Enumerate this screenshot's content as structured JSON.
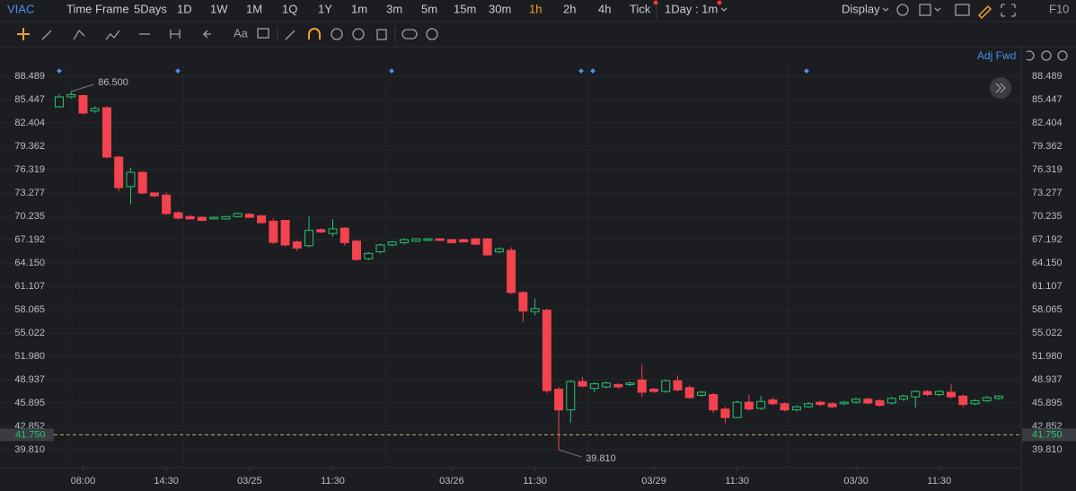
{
  "toolbar": {
    "symbol": "VIAC",
    "time_frame": "Time Frame",
    "periods": [
      "5Days",
      "1D",
      "1W",
      "1M",
      "1Q",
      "1Y",
      "1m",
      "3m",
      "5m",
      "15m",
      "30m",
      "1h",
      "2h",
      "4h",
      "Tick"
    ],
    "interval": "1Day : 1m",
    "display": "Display",
    "f10": "F10"
  },
  "drawing_tools": {
    "text_tool": "Aa"
  },
  "adjust": "Adj Fwd",
  "chart_data": {
    "type": "candlestick",
    "categories": [
      null,
      null,
      "08:00",
      null,
      null,
      null,
      null,
      null,
      null,
      "14:30",
      null,
      null,
      null,
      null,
      null,
      null,
      "03/25",
      null,
      null,
      null,
      null,
      null,
      null,
      "11:30",
      null,
      null,
      null,
      null,
      null,
      null,
      null,
      null,
      null,
      "03/26",
      null,
      null,
      null,
      null,
      null,
      null,
      "11:30",
      null,
      null,
      null,
      null,
      null,
      null,
      null,
      null,
      null,
      "03/29",
      null,
      null,
      null,
      null,
      null,
      null,
      "11:30",
      null,
      null,
      null,
      null,
      null,
      null,
      null,
      null,
      null,
      "03/30",
      null,
      null,
      null,
      null,
      null,
      null,
      "11:30",
      null,
      null,
      null,
      null,
      null
    ],
    "open": [
      84.51,
      85.8,
      85.97,
      83.95,
      84.4,
      77.96,
      74.1,
      75.97,
      73.28,
      73.0,
      70.7,
      70.2,
      70.1,
      69.9,
      69.9,
      70.2,
      70.5,
      70.3,
      69.6,
      69.7,
      66.9,
      66.4,
      68.5,
      68.0,
      68.7,
      67.0,
      64.7,
      65.6,
      66.5,
      66.8,
      67.0,
      67.1,
      67.3,
      67.2,
      67.2,
      67.3,
      67.3,
      65.6,
      65.8,
      60.3,
      57.8,
      58.0,
      47.7,
      45.0,
      48.7,
      47.8,
      48.0,
      48.3,
      48.3,
      48.9,
      47.7,
      47.4,
      48.8,
      47.9,
      46.9,
      47.0,
      45.1,
      44.0,
      46.0,
      45.2,
      46.3,
      45.8,
      45.0,
      45.4,
      46.0,
      45.8,
      45.8,
      46.0,
      46.4,
      46.2,
      45.9,
      46.4,
      46.7,
      47.4,
      47.0,
      47.3,
      46.8,
      45.8,
      46.2,
      46.5
    ],
    "high": [
      86.15,
      86.5,
      86.1,
      84.6,
      84.6,
      78.1,
      76.6,
      76.1,
      73.4,
      73.3,
      70.9,
      70.4,
      70.2,
      70.2,
      70.3,
      70.7,
      70.7,
      70.4,
      70.0,
      69.8,
      67.1,
      70.2,
      68.7,
      69.9,
      68.8,
      67.2,
      65.6,
      66.7,
      67.0,
      67.4,
      67.4,
      67.4,
      67.4,
      67.3,
      67.3,
      67.4,
      67.4,
      66.2,
      66.2,
      60.5,
      59.5,
      58.2,
      48.0,
      48.9,
      49.3,
      48.6,
      48.7,
      48.5,
      48.7,
      50.9,
      47.9,
      49.0,
      49.5,
      48.2,
      47.5,
      47.2,
      45.4,
      46.2,
      47.0,
      46.8,
      46.6,
      46.0,
      45.6,
      46.0,
      46.2,
      46.0,
      46.2,
      46.6,
      46.6,
      46.4,
      46.7,
      47.0,
      47.6,
      47.6,
      47.6,
      48.4,
      47.0,
      46.4,
      46.8,
      46.9
    ],
    "low": [
      84.4,
      85.6,
      83.5,
      83.7,
      77.8,
      73.5,
      71.8,
      73.1,
      72.7,
      70.4,
      69.8,
      69.8,
      69.6,
      69.8,
      69.8,
      70.1,
      70.0,
      69.3,
      66.6,
      66.3,
      65.7,
      66.2,
      68.0,
      67.6,
      66.4,
      64.4,
      64.5,
      65.4,
      66.3,
      66.6,
      66.9,
      67.0,
      67.0,
      66.7,
      66.8,
      66.5,
      65.1,
      65.4,
      60.1,
      56.5,
      57.3,
      47.2,
      39.81,
      43.3,
      47.9,
      47.3,
      47.8,
      47.8,
      48.1,
      46.7,
      47.2,
      47.2,
      47.4,
      46.4,
      46.7,
      44.6,
      43.3,
      43.9,
      44.9,
      45.0,
      45.6,
      44.8,
      44.8,
      45.3,
      45.5,
      45.2,
      45.6,
      45.8,
      45.7,
      45.4,
      45.7,
      46.2,
      45.3,
      46.8,
      46.8,
      46.5,
      45.4,
      45.6,
      46.0,
      46.3
    ],
    "close": [
      85.8,
      86.1,
      83.69,
      84.3,
      77.96,
      73.98,
      75.97,
      73.28,
      72.9,
      70.59,
      70.0,
      69.9,
      69.7,
      70.1,
      70.2,
      70.6,
      70.1,
      69.4,
      66.84,
      66.5,
      66.1,
      68.4,
      68.2,
      68.6,
      66.8,
      64.6,
      65.4,
      66.5,
      66.9,
      67.2,
      67.3,
      67.3,
      67.1,
      66.8,
      66.9,
      66.6,
      65.2,
      66.0,
      60.3,
      57.9,
      58.2,
      47.5,
      45.0,
      48.7,
      48.1,
      48.4,
      48.5,
      48.0,
      48.5,
      47.3,
      47.4,
      48.8,
      47.6,
      46.6,
      47.3,
      45.0,
      44.0,
      46.0,
      45.1,
      46.1,
      45.8,
      45.0,
      45.4,
      45.8,
      45.7,
      45.4,
      46.0,
      46.4,
      45.9,
      45.6,
      46.5,
      46.8,
      47.4,
      47.0,
      47.4,
      46.7,
      45.7,
      46.2,
      46.6,
      46.8
    ],
    "up_color": "#26c46f",
    "down_color": "#f2434f",
    "ylim": [
      37.585,
      90.478
    ],
    "yticks": [
      88.489,
      85.447,
      82.404,
      79.362,
      76.319,
      73.277,
      70.235,
      67.192,
      {
        "value": 64.15,
        "label": "64.150"
      },
      61.107,
      58.065,
      55.022,
      {
        "value": 51.98,
        "label": "51.980"
      },
      48.937,
      45.895,
      42.852,
      {
        "value": 39.81,
        "label": "39.810"
      }
    ],
    "annotations": [
      {
        "value": 86.5,
        "label": "86.500"
      },
      {
        "value": 39.81,
        "label": "39.810"
      }
    ],
    "price_line": {
      "value": 41.75,
      "label": "41.750"
    },
    "grid": true
  }
}
